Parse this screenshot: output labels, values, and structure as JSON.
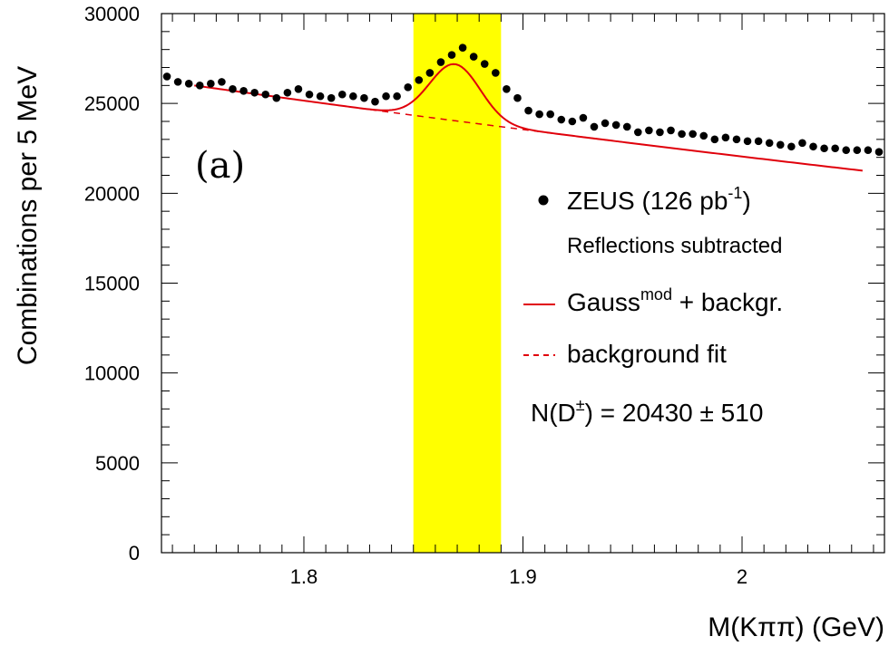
{
  "chart_data": {
    "type": "scatter",
    "xlabel": "M(Kππ)  (GeV)",
    "ylabel": "Combinations per 5 MeV",
    "xlim": [
      1.735,
      2.065
    ],
    "ylim": [
      0,
      30000
    ],
    "x_ticks": [
      1.8,
      1.9,
      2.0
    ],
    "x_tick_labels": [
      "1.8",
      "1.9",
      "2"
    ],
    "y_ticks": [
      0,
      5000,
      10000,
      15000,
      20000,
      25000,
      30000
    ],
    "y_tick_labels": [
      "0",
      "5000",
      "10000",
      "15000",
      "20000",
      "25000",
      "30000"
    ],
    "panel_label": "(a)",
    "signal_band": {
      "x_min": 1.85,
      "x_max": 1.89,
      "color": "#ffff00"
    },
    "legend": {
      "position": "right",
      "data_label": "ZEUS (126 pb",
      "data_label_sup": "-1",
      "data_label_end": ")",
      "note": "Reflections subtracted",
      "fit_label": "Gauss",
      "fit_label_sup": "mod",
      "fit_label_end": " + backgr.",
      "bg_label": "background fit",
      "yield_label_pre": "N(D",
      "yield_label_sup": "±",
      "yield_label_post": ") = 20430 ± 510"
    },
    "colors": {
      "fit": "#e0000b",
      "points": "#000000",
      "band": "#ffff00"
    },
    "series": [
      {
        "type": "scatter",
        "x": [
          1.7375,
          1.7425,
          1.7475,
          1.7525,
          1.7575,
          1.7625,
          1.7675,
          1.7725,
          1.7775,
          1.7825,
          1.7875,
          1.7925,
          1.7975,
          1.8025,
          1.8075,
          1.8125,
          1.8175,
          1.8225,
          1.8275,
          1.8325,
          1.8375,
          1.8425,
          1.8475,
          1.8525,
          1.8575,
          1.8625,
          1.8675,
          1.8725,
          1.8775,
          1.8825,
          1.8875,
          1.8925,
          1.8975,
          1.9025,
          1.9075,
          1.9125,
          1.9175,
          1.9225,
          1.9275,
          1.9325,
          1.9375,
          1.9425,
          1.9475,
          1.9525,
          1.9575,
          1.9625,
          1.9675,
          1.9725,
          1.9775,
          1.9825,
          1.9875,
          1.9925,
          1.9975,
          2.0025,
          2.0075,
          2.0125,
          2.0175,
          2.0225,
          2.0275,
          2.0325,
          2.0375,
          2.0425,
          2.0475,
          2.0525,
          2.0575,
          2.0625
        ],
        "y": [
          26500,
          26200,
          26100,
          26000,
          26100,
          26200,
          25800,
          25700,
          25600,
          25500,
          25300,
          25600,
          25800,
          25500,
          25400,
          25300,
          25500,
          25400,
          25300,
          25100,
          25400,
          25400,
          25900,
          26300,
          26700,
          27300,
          27700,
          28100,
          27600,
          27200,
          26700,
          25800,
          25300,
          24600,
          24400,
          24400,
          24100,
          24000,
          24200,
          23700,
          23900,
          23800,
          23700,
          23400,
          23500,
          23400,
          23500,
          23300,
          23300,
          23200,
          23000,
          23100,
          23000,
          22900,
          22900,
          22800,
          22700,
          22600,
          22800,
          22600,
          22500,
          22500,
          22400,
          22400,
          22400,
          22300
        ]
      },
      {
        "type": "line",
        "name": "Gauss mod + backgr.",
        "model": "expbg_plus_gauss",
        "bg_a": 26000,
        "bg_b": 6.6,
        "bg_x0": 1.75,
        "peak_mean": 1.869,
        "peak_sigma": 0.0115,
        "peak_amp": 3150,
        "x_range": [
          1.75,
          2.055
        ]
      },
      {
        "type": "line",
        "name": "background fit",
        "model": "expbg",
        "bg_a": 26000,
        "bg_b": 6.6,
        "bg_x0": 1.75,
        "x_range": [
          1.825,
          1.96
        ],
        "style": "dashed"
      }
    ]
  }
}
